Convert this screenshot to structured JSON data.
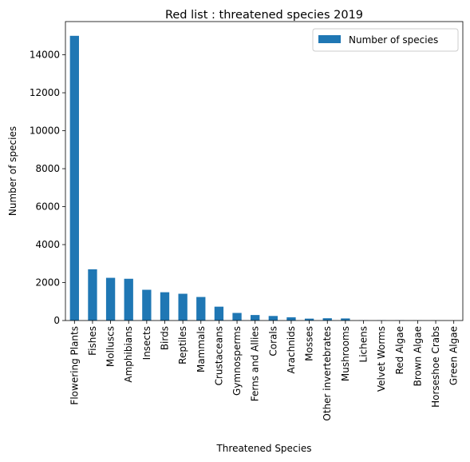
{
  "chart_data": {
    "type": "bar",
    "title": "Red list : threatened species 2019",
    "xlabel": "Threatened Species",
    "ylabel": "Number of species",
    "ylim": [
      0,
      15750
    ],
    "yticks": [
      0,
      2000,
      4000,
      6000,
      8000,
      10000,
      12000,
      14000
    ],
    "grid": false,
    "legend_position": "top-right",
    "categories": [
      "Flowering Plants",
      "Fishes",
      "Molluscs",
      "Amphibians",
      "Insects",
      "Birds",
      "Reptiles",
      "Mammals",
      "Crustaceans",
      "Gymnosperms",
      "Ferns and Allies",
      "Corals",
      "Arachnids",
      "Mosses",
      "Other invertebrates",
      "Mushrooms",
      "Lichens",
      "Velvet Worms",
      "Red Algae",
      "Brown Algae",
      "Horseshoe Crabs",
      "Green Algae"
    ],
    "series": [
      {
        "name": "Number of species",
        "color": "#1f77b4",
        "values": [
          15000,
          2700,
          2250,
          2200,
          1620,
          1490,
          1410,
          1240,
          730,
          400,
          290,
          240,
          170,
          100,
          120,
          110,
          10,
          10,
          10,
          6,
          4,
          0
        ]
      }
    ]
  }
}
